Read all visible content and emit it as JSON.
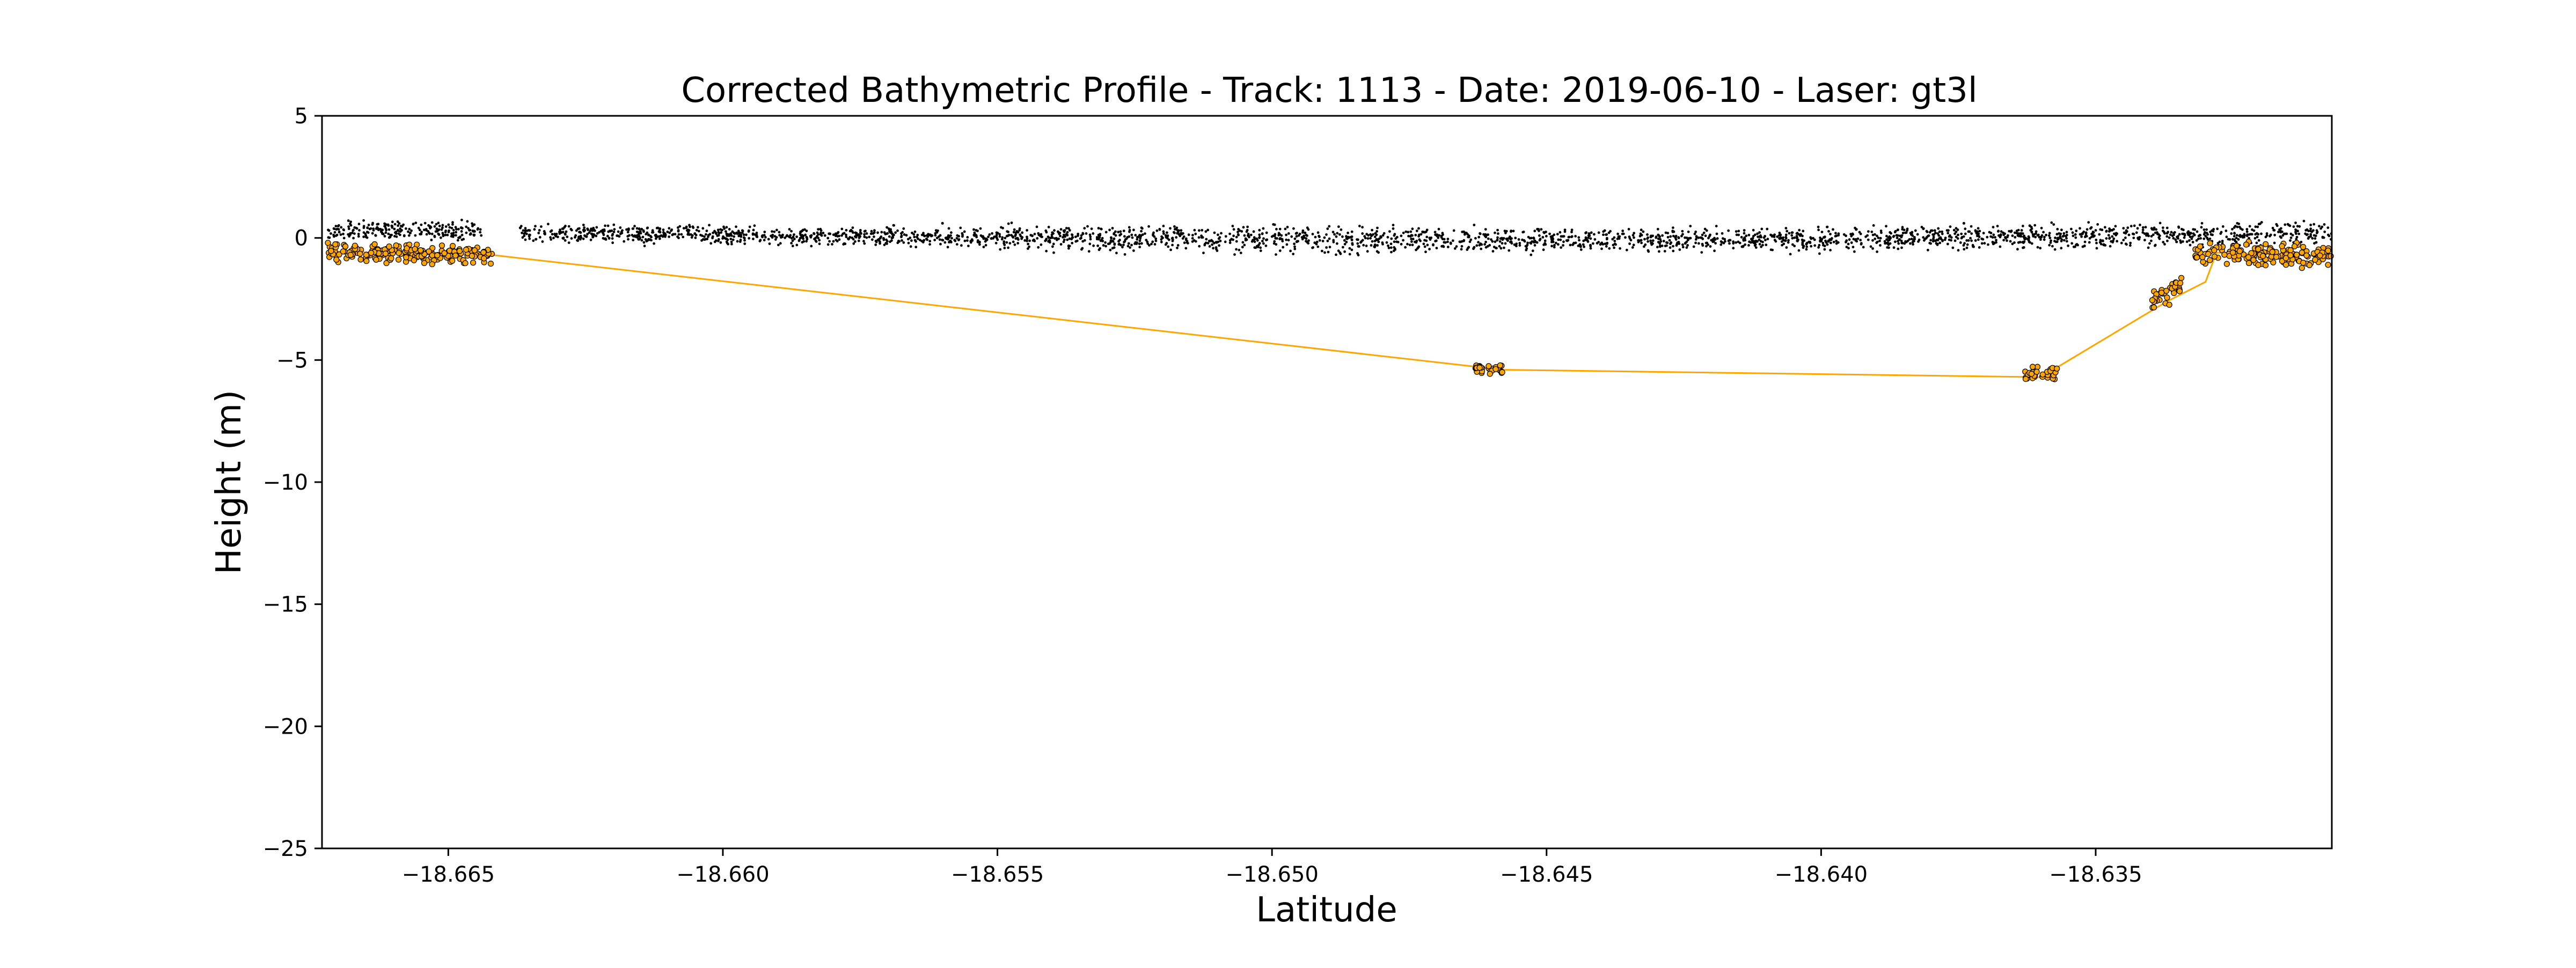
{
  "chart_data": {
    "type": "scatter",
    "title": "Corrected Bathymetric Profile - Track: 1113 - Date: 2019-06-10 - Laser: gt3l",
    "xlabel": "Latitude",
    "ylabel": "Height (m)",
    "xlim": [
      -18.6673,
      -18.6307
    ],
    "ylim": [
      -25,
      5
    ],
    "x_ticks": [
      -18.665,
      -18.66,
      -18.655,
      -18.65,
      -18.645,
      -18.64,
      -18.635
    ],
    "x_tick_labels": [
      "−18.665",
      "−18.660",
      "−18.655",
      "−18.650",
      "−18.645",
      "−18.640",
      "−18.635"
    ],
    "y_ticks": [
      5,
      0,
      -5,
      -10,
      -15,
      -20,
      -25
    ],
    "y_tick_labels": [
      "5",
      "0",
      "−5",
      "−10",
      "−15",
      "−20",
      "−25"
    ],
    "grid": false,
    "colors": {
      "photons": "#000000",
      "bathymetry": "#FFA500",
      "bathymetry_edge": "#000000"
    },
    "series": [
      {
        "kind": "sea-surface-photons",
        "segments": [
          {
            "x_start": -18.6672,
            "x_end": -18.6644,
            "y_start": 0.3,
            "y_end": 0.3,
            "spread": 0.35
          },
          {
            "x_start": -18.6637,
            "x_end": -18.655,
            "y_start": 0.2,
            "y_end": 0.0,
            "spread": 0.35
          },
          {
            "x_start": -18.655,
            "x_end": -18.645,
            "y_start": 0.0,
            "y_end": -0.1,
            "spread": 0.5
          },
          {
            "x_start": -18.645,
            "x_end": -18.638,
            "y_start": -0.1,
            "y_end": 0.0,
            "spread": 0.45
          },
          {
            "x_start": -18.638,
            "x_end": -18.6307,
            "y_start": 0.0,
            "y_end": 0.2,
            "spread": 0.45
          }
        ],
        "outliers": [
          {
            "x": -18.656,
            "y": 0.6
          },
          {
            "x": -18.6374,
            "y": 0.6
          },
          {
            "x": -18.6362,
            "y": 0.5
          }
        ]
      },
      {
        "kind": "bathymetry-points",
        "clusters": [
          {
            "x_start": -18.6672,
            "x_end": -18.6642,
            "y_start": -0.55,
            "y_end": -0.75,
            "spread": 0.45
          },
          {
            "x_start": -18.6463,
            "x_end": -18.6458,
            "y_start": -5.35,
            "y_end": -5.4,
            "spread": 0.2
          },
          {
            "x_start": -18.6363,
            "x_end": -18.6357,
            "y_start": -5.6,
            "y_end": -5.45,
            "spread": 0.35
          },
          {
            "x_start": -18.634,
            "x_end": -18.6334,
            "y_start": -2.7,
            "y_end": -1.9,
            "spread": 0.6
          },
          {
            "x_start": -18.6332,
            "x_end": -18.6307,
            "y_start": -0.6,
            "y_end": -0.75,
            "spread": 0.55
          }
        ]
      },
      {
        "kind": "bathymetry-line",
        "points": [
          {
            "x": -18.6672,
            "y": -0.55
          },
          {
            "x": -18.6642,
            "y": -0.7
          },
          {
            "x": -18.6458,
            "y": -5.4
          },
          {
            "x": -18.636,
            "y": -5.7
          },
          {
            "x": -18.6337,
            "y": -2.6
          },
          {
            "x": -18.633,
            "y": -1.8
          },
          {
            "x": -18.6328,
            "y": -0.6
          },
          {
            "x": -18.6307,
            "y": -0.75
          }
        ]
      }
    ]
  }
}
